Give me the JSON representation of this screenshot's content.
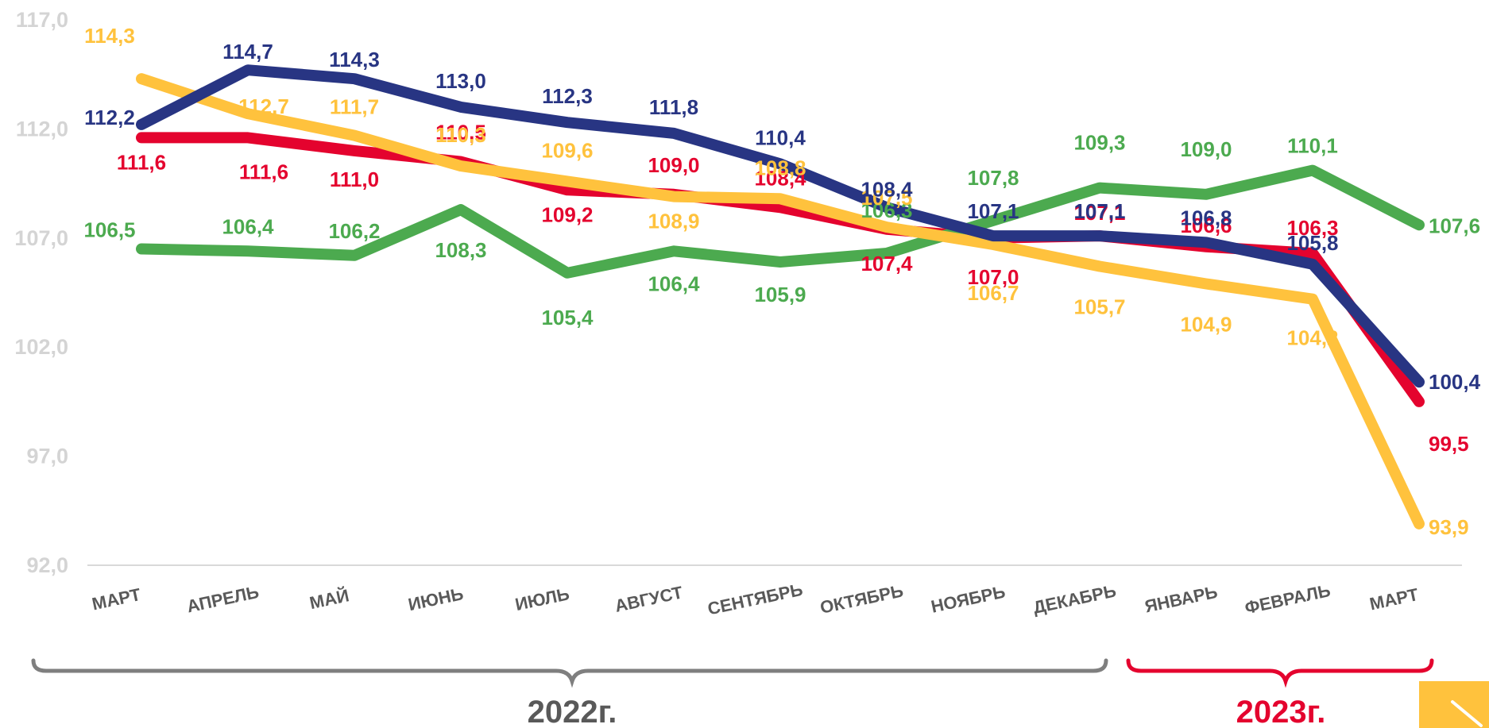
{
  "chart_data": {
    "type": "line",
    "title": "",
    "xlabel": "",
    "ylabel": "",
    "ylim": [
      92.0,
      117.0
    ],
    "yticks": [
      "92,0",
      "97,0",
      "102,0",
      "107,0",
      "112,0",
      "117,0"
    ],
    "grid": "baseline only",
    "categories": [
      "МАРТ",
      "АПРЕЛЬ",
      "МАЙ",
      "ИЮНЬ",
      "ИЮЛЬ",
      "АВГУСТ",
      "СЕНТЯБРЬ",
      "ОКТЯБРЬ",
      "НОЯБРЬ",
      "ДЕКАБРЬ",
      "ЯНВАРЬ",
      "ФЕВРАЛЬ",
      "МАРТ"
    ],
    "series": [
      {
        "color": "#e4032e",
        "values": [
          111.6,
          111.6,
          111.0,
          110.5,
          109.2,
          109.0,
          108.4,
          107.4,
          107.0,
          107.1,
          106.6,
          106.3,
          99.5
        ],
        "labels": [
          "111,6",
          "111,6",
          "111,0",
          "110,5",
          "109,2",
          "109,0",
          "108,4",
          "107,4",
          "107,0",
          "107,1",
          "106,6",
          "106,3",
          "99,5"
        ]
      },
      {
        "color": "#4caa4f",
        "values": [
          106.5,
          106.4,
          106.2,
          108.3,
          105.4,
          106.4,
          105.9,
          106.3,
          107.8,
          109.3,
          109.0,
          110.1,
          107.6
        ],
        "labels": [
          "106,5",
          "106,4",
          "106,2",
          "108,3",
          "105,4",
          "106,4",
          "105,9",
          "106,3",
          "107,8",
          "109,3",
          "109,0",
          "110,1",
          "107,6"
        ]
      },
      {
        "color": "#ffc23d",
        "values": [
          114.3,
          112.7,
          111.7,
          110.3,
          109.6,
          108.9,
          108.8,
          107.5,
          106.7,
          105.7,
          104.9,
          104.2,
          93.9
        ],
        "labels": [
          "114,3",
          "112,7",
          "111,7",
          "110,3",
          "109,6",
          "108,9",
          "108,8",
          "107,5",
          "106,7",
          "105,7",
          "104,9",
          "104,2",
          "93,9"
        ]
      },
      {
        "color": "#283583",
        "values": [
          112.2,
          114.7,
          114.3,
          113.0,
          112.3,
          111.8,
          110.4,
          108.4,
          107.1,
          107.1,
          106.8,
          105.8,
          100.4
        ],
        "labels": [
          "112,2",
          "114,7",
          "114,3",
          "113,0",
          "112,3",
          "111,8",
          "110,4",
          "108,4",
          "107,1",
          "107,1",
          "106,8",
          "105,8",
          "100,4"
        ]
      }
    ],
    "periods": [
      {
        "label": "2022г.",
        "color": "#7f7f7f"
      },
      {
        "label": "2023г.",
        "color": "#e4032e"
      }
    ]
  },
  "corner_badge": {
    "color": "#ffc23d",
    "icon": "arrow-down-right-icon"
  }
}
